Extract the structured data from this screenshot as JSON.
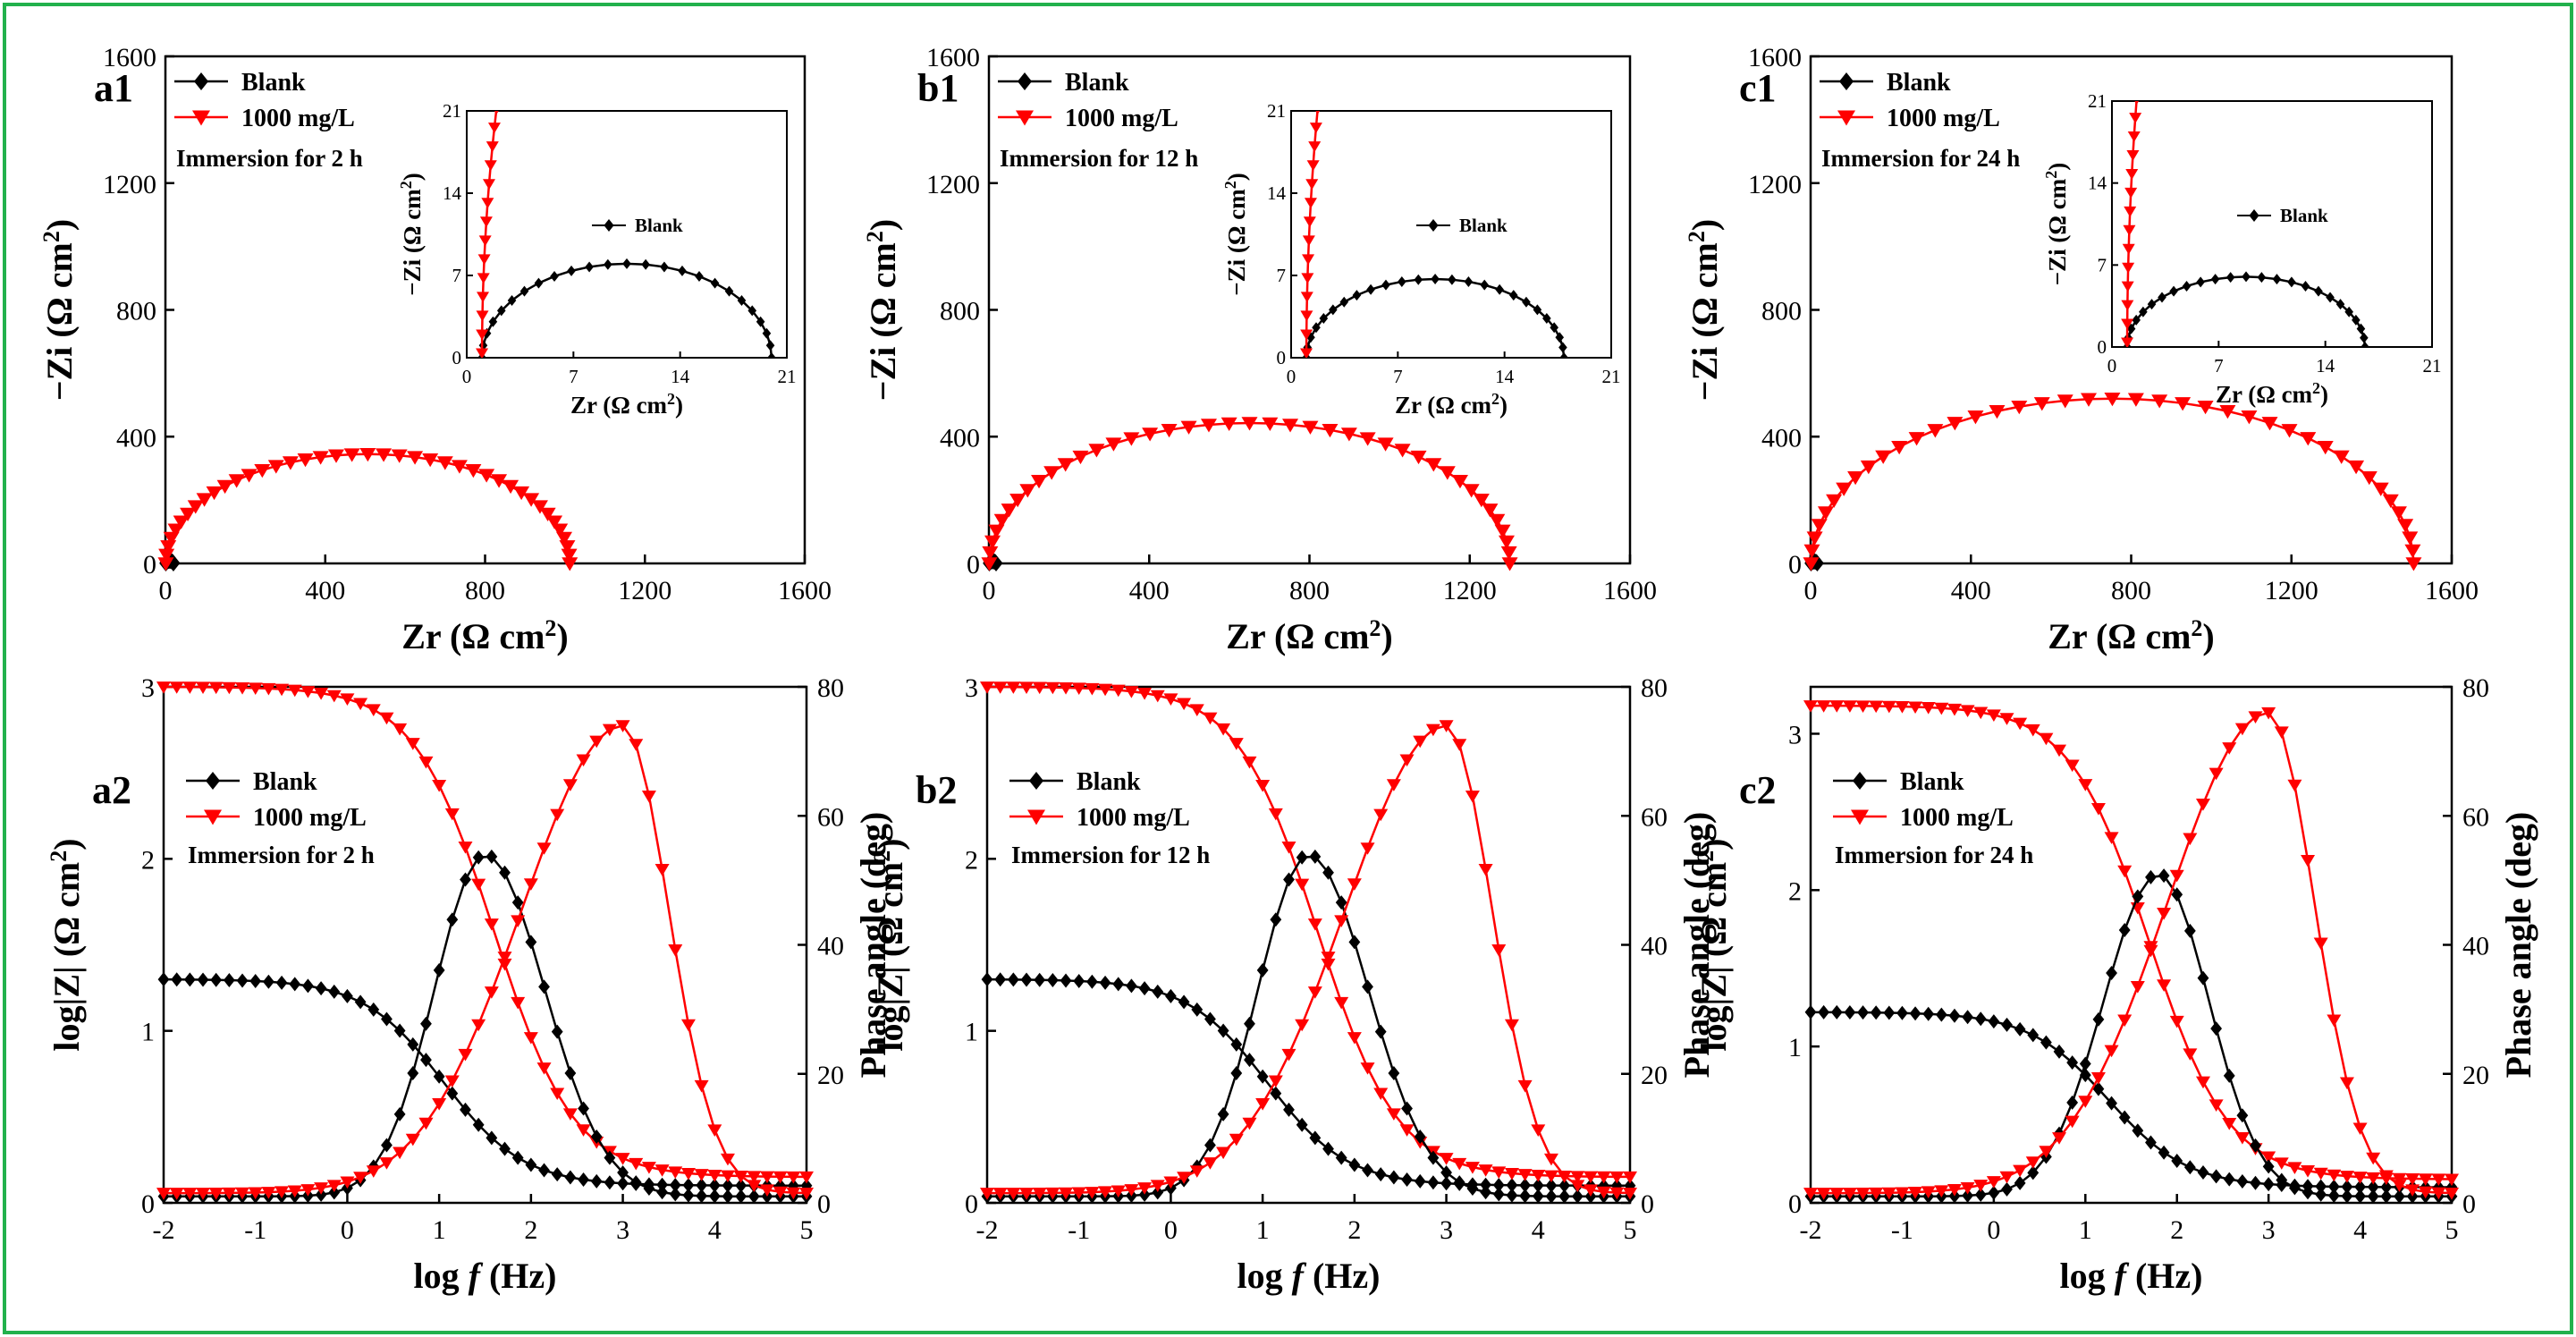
{
  "colors": {
    "frame": "#22b14c",
    "blank": "#000000",
    "inhibitor": "#ff0000"
  },
  "units": {
    "ohm_cm2": "(Ω cm²)"
  },
  "nyquist_axis_labels": {
    "x": "Zr",
    "y": "−Zi"
  },
  "bode_axis_labels": {
    "x_prefix": "log",
    "x_f": "f",
    "x_unit": "(Hz)",
    "y_left_prefix": "log|Z|",
    "y_right": "Phase angle (deg)"
  },
  "chart_data": [
    {
      "id": "a1",
      "type": "line",
      "panel_label": "a1",
      "title": "",
      "xlabel": "Zr (Ω cm²)",
      "ylabel": "−Zi (Ω cm²)",
      "xlim": [
        0,
        1600
      ],
      "ylim": [
        0,
        1600
      ],
      "xticks": [
        0,
        400,
        800,
        1200,
        1600
      ],
      "yticks": [
        0,
        400,
        800,
        1200,
        1600
      ],
      "legend": {
        "position": "top-left",
        "entries": [
          "Blank",
          "1000 mg/L"
        ],
        "note": "Immersion for 2 h"
      },
      "series": [
        {
          "name": "Blank",
          "marker": "diamond",
          "color": "#000000",
          "semicircle": {
            "z0": 1.0,
            "z1": 20.0,
            "peak": 8.0
          }
        },
        {
          "name": "1000 mg/L",
          "marker": "triangle-down",
          "color": "#ff0000",
          "semicircle": {
            "z0": 1.0,
            "z1": 1012,
            "peak": 345
          }
        }
      ],
      "inset": {
        "xlabel": "Zr (Ω cm²)",
        "ylabel": "−Zi (Ω cm²)",
        "xlim": [
          0,
          21
        ],
        "ylim": [
          0,
          21
        ],
        "xticks": [
          0,
          7,
          14,
          21
        ],
        "yticks": [
          0,
          7,
          14,
          21
        ],
        "legend": "Blank"
      }
    },
    {
      "id": "b1",
      "type": "line",
      "panel_label": "b1",
      "title": "",
      "xlabel": "Zr (Ω cm²)",
      "ylabel": "−Zi (Ω cm²)",
      "xlim": [
        0,
        1600
      ],
      "ylim": [
        0,
        1600
      ],
      "xticks": [
        0,
        400,
        800,
        1200,
        1600
      ],
      "yticks": [
        0,
        400,
        800,
        1200,
        1600
      ],
      "legend": {
        "position": "top-left",
        "entries": [
          "Blank",
          "1000 mg/L"
        ],
        "note": "Immersion for 12 h"
      },
      "series": [
        {
          "name": "Blank",
          "marker": "diamond",
          "color": "#000000",
          "semicircle": {
            "z0": 1.0,
            "z1": 17.9,
            "peak": 6.7
          }
        },
        {
          "name": "1000 mg/L",
          "marker": "triangle-down",
          "color": "#ff0000",
          "semicircle": {
            "z0": 1.0,
            "z1": 1300,
            "peak": 443
          }
        }
      ],
      "inset": {
        "xlabel": "Zr (Ω cm²)",
        "ylabel": "−Zi (Ω cm²)",
        "xlim": [
          0,
          21
        ],
        "ylim": [
          0,
          21
        ],
        "xticks": [
          0,
          7,
          14,
          21
        ],
        "yticks": [
          0,
          7,
          14,
          21
        ],
        "legend": "Blank"
      }
    },
    {
      "id": "c1",
      "type": "line",
      "panel_label": "c1",
      "title": "",
      "xlabel": "Zr (Ω cm²)",
      "ylabel": "−Zi (Ω cm²)",
      "xlim": [
        0,
        1600
      ],
      "ylim": [
        0,
        1600
      ],
      "xticks": [
        0,
        400,
        800,
        1200,
        1600
      ],
      "yticks": [
        0,
        400,
        800,
        1200,
        1600
      ],
      "legend": {
        "position": "top-left",
        "entries": [
          "Blank",
          "1000 mg/L"
        ],
        "note": "Immersion for 24 h"
      },
      "series": [
        {
          "name": "Blank",
          "marker": "diamond",
          "color": "#000000",
          "semicircle": {
            "z0": 1.0,
            "z1": 16.6,
            "peak": 6.0
          }
        },
        {
          "name": "1000 mg/L",
          "marker": "triangle-down",
          "color": "#ff0000",
          "semicircle": {
            "z0": 1.0,
            "z1": 1505,
            "peak": 520
          }
        }
      ],
      "inset": {
        "xlabel": "Zr (Ω cm²)",
        "ylabel": "−Zi (Ω cm²)",
        "xlim": [
          0,
          21
        ],
        "ylim": [
          0,
          21
        ],
        "xticks": [
          0,
          7,
          14,
          21
        ],
        "yticks": [
          0,
          7,
          14,
          21
        ],
        "legend": "Blank"
      }
    },
    {
      "id": "a2",
      "type": "line",
      "panel_label": "a2",
      "title": "",
      "xlabel": "log f (Hz)",
      "ylabel": "log|Z| (Ω cm²)",
      "y2label": "Phase angle (deg)",
      "xlim": [
        -2,
        5
      ],
      "ylim": [
        0,
        3
      ],
      "y2lim": [
        0,
        80
      ],
      "xticks": [
        -2,
        -1,
        0,
        1,
        2,
        3,
        4,
        5
      ],
      "yticks": [
        0,
        1,
        2,
        3
      ],
      "y2ticks": [
        0,
        20,
        40,
        60,
        80
      ],
      "legend": {
        "position": "upper-left",
        "entries": [
          "Blank",
          "1000 mg/L"
        ],
        "note": "Immersion for 2 h"
      },
      "series": [
        {
          "name": "Blank",
          "quantity": "log|Z|",
          "color": "#000000",
          "lowf": 1.3,
          "highf": 0.1,
          "corner": 1.05
        },
        {
          "name": "1000 mg/L",
          "quantity": "log|Z|",
          "color": "#ff0000",
          "lowf": 3.0,
          "highf": 0.15,
          "corner": 1.6
        },
        {
          "name": "Blank",
          "quantity": "phase",
          "color": "#000000",
          "peak_at": 1.5,
          "peak": 54,
          "base": 1.0,
          "w_left": 0.55,
          "w_right": 0.65
        },
        {
          "name": "1000 mg/L",
          "quantity": "phase",
          "color": "#ff0000",
          "peak_at": 3.0,
          "peak": 74,
          "base": 1.5,
          "w_left": 1.1,
          "w_right": 0.5
        }
      ]
    },
    {
      "id": "b2",
      "type": "line",
      "panel_label": "b2",
      "title": "",
      "xlabel": "log f (Hz)",
      "ylabel": "log|Z| (Ω cm²)",
      "y2label": "Phase angle (deg)",
      "xlim": [
        -2,
        5
      ],
      "ylim": [
        0,
        3
      ],
      "y2lim": [
        0,
        80
      ],
      "xticks": [
        -2,
        -1,
        0,
        1,
        2,
        3,
        4,
        5
      ],
      "yticks": [
        0,
        1,
        2,
        3
      ],
      "y2ticks": [
        0,
        20,
        40,
        60,
        80
      ],
      "legend": {
        "position": "upper-left",
        "entries": [
          "Blank",
          "1000 mg/L"
        ],
        "note": "Immersion for 12 h"
      },
      "series": [
        {
          "name": "Blank",
          "quantity": "log|Z|",
          "color": "#000000",
          "lowf": 1.3,
          "highf": 0.1,
          "corner": 1.05
        },
        {
          "name": "1000 mg/L",
          "quantity": "log|Z|",
          "color": "#ff0000",
          "lowf": 3.0,
          "highf": 0.15,
          "corner": 1.6
        },
        {
          "name": "Blank",
          "quantity": "phase",
          "color": "#000000",
          "peak_at": 1.5,
          "peak": 54,
          "base": 1.0,
          "w_left": 0.55,
          "w_right": 0.65
        },
        {
          "name": "1000 mg/L",
          "quantity": "phase",
          "color": "#ff0000",
          "peak_at": 3.0,
          "peak": 74,
          "base": 1.5,
          "w_left": 1.1,
          "w_right": 0.5
        }
      ]
    },
    {
      "id": "c2",
      "type": "line",
      "panel_label": "c2",
      "title": "",
      "xlabel": "log f (Hz)",
      "ylabel": "log|Z| (Ω cm²)",
      "y2label": "Phase angle (deg)",
      "xlim": [
        -2,
        5
      ],
      "ylim": [
        0,
        3.3
      ],
      "y2lim": [
        0,
        80
      ],
      "xticks": [
        -2,
        -1,
        0,
        1,
        2,
        3,
        4,
        5
      ],
      "yticks": [
        0,
        1,
        2,
        3
      ],
      "y2ticks": [
        0,
        20,
        40,
        60,
        80
      ],
      "legend": {
        "position": "upper-left",
        "entries": [
          "Blank",
          "1000 mg/L"
        ],
        "note": "Immersion for 24 h"
      },
      "series": [
        {
          "name": "Blank",
          "quantity": "log|Z|",
          "color": "#000000",
          "lowf": 1.22,
          "highf": 0.1,
          "corner": 1.25
        },
        {
          "name": "1000 mg/L",
          "quantity": "log|Z|",
          "color": "#ff0000",
          "lowf": 3.18,
          "highf": 0.15,
          "corner": 1.7
        },
        {
          "name": "Blank",
          "quantity": "phase",
          "color": "#000000",
          "peak_at": 1.8,
          "peak": 51,
          "base": 1.0,
          "w_left": 0.6,
          "w_right": 0.55
        },
        {
          "name": "1000 mg/L",
          "quantity": "phase",
          "color": "#ff0000",
          "peak_at": 3.0,
          "peak": 76,
          "base": 1.5,
          "w_left": 1.1,
          "w_right": 0.5
        }
      ]
    }
  ]
}
